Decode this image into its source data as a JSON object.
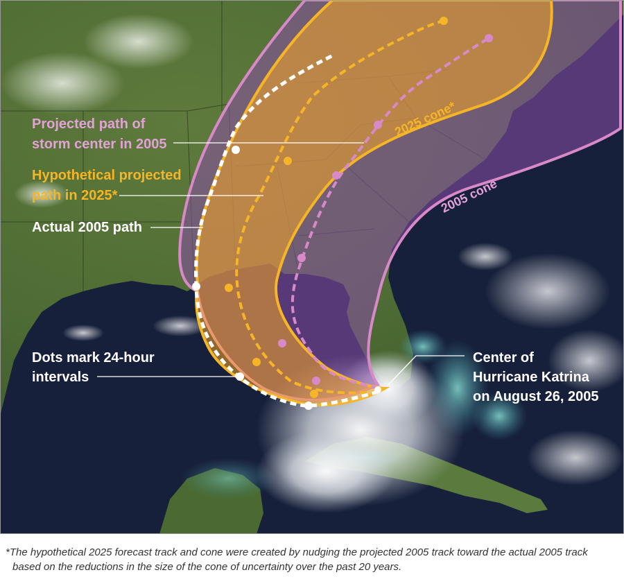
{
  "colors": {
    "projected_2005": "#d88ac8",
    "projected_2025": "#f5b526",
    "actual_2005": "#ffffff",
    "cone_2005": "#8a4fa8",
    "cone_2025": "#f5a623",
    "land": "#4d6b34",
    "water": "#17203a"
  },
  "legend": {
    "projected_2005": [
      "Projected path of",
      "storm center in 2005"
    ],
    "projected_2025": [
      "Hypothetical projected",
      "path in 2025*"
    ],
    "actual_2005": "Actual 2005 path",
    "dots": [
      "Dots mark 24-hour",
      "intervals"
    ],
    "katrina_center": [
      "Center of",
      "Hurricane Katrina",
      "on August 26, 2005"
    ]
  },
  "cone_labels": {
    "cone_2025": "2025 cone*",
    "cone_2005": "2005 cone"
  },
  "footnote": [
    "*The hypothetical 2025 forecast track and cone were created by nudging the projected 2005 track toward the actual 2005",
    "track based on the reductions in the size of the cone of uncertainty over the past 20 years."
  ]
}
